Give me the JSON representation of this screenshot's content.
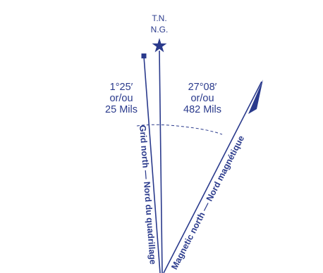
{
  "declination_diagram": {
    "true_north": {
      "label_line1": "T.N.",
      "label_line2": "N.G.",
      "symbol": "star-icon"
    },
    "grid_north": {
      "label": "Grid north  —  Nord du quadrillage",
      "angle_degrees": "1°25′",
      "separator": "or/ou",
      "angle_mils": "25 Mils"
    },
    "magnetic_north": {
      "label": "Magnetic north  —  Nord magnétique",
      "symbol": "half-arrowhead-icon",
      "angle_degrees": "27°08′",
      "separator": "or/ou",
      "angle_mils": "482 Mils"
    },
    "colors": {
      "ink": "#2a3a8c",
      "background": "#ffffff"
    }
  }
}
